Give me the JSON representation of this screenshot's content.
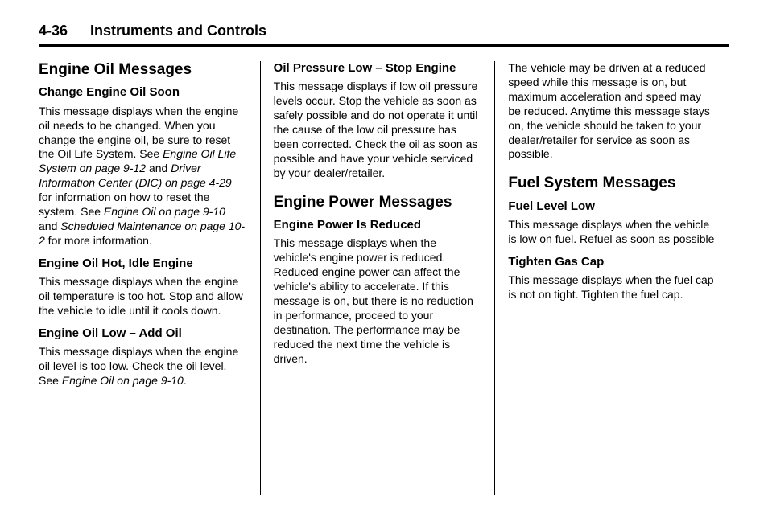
{
  "header": {
    "page_num": "4-36",
    "title": "Instruments and Controls"
  },
  "col1": {
    "h1_1": "Engine Oil Messages",
    "h2_1": "Change Engine Oil Soon",
    "p1a": "This message displays when the engine oil needs to be changed. When you change the engine oil, be sure to reset the Oil Life System. See ",
    "p1i1": "Engine Oil Life System on page 9-12",
    "p1b": " and ",
    "p1i2": "Driver Information Center (DIC) on page 4-29",
    "p1c": " for information on how to reset the system. See ",
    "p1i3": "Engine Oil on page 9-10",
    "p1d": " and ",
    "p1i4": "Scheduled Maintenance on page 10-2",
    "p1e": " for more information.",
    "h2_2": "Engine Oil Hot, Idle Engine",
    "p2": "This message displays when the engine oil temperature is too hot. Stop and allow the vehicle to idle until it cools down.",
    "h2_3": "Engine Oil Low – Add Oil",
    "p3a": "This message displays when the engine oil level is too low. Check the oil level. See ",
    "p3i1": "Engine Oil on page 9-10",
    "p3b": "."
  },
  "col2": {
    "h2_1": "Oil Pressure Low – Stop Engine",
    "p1": "This message displays if low oil pressure levels occur. Stop the vehicle as soon as safely possible and do not operate it until the cause of the low oil pressure has been corrected. Check the oil as soon as possible and have your vehicle serviced by your dealer/retailer.",
    "h1_1": "Engine Power Messages",
    "h2_2": "Engine Power Is Reduced",
    "p2": "This message displays when the vehicle's engine power is reduced. Reduced engine power can affect the vehicle's ability to accelerate. If this message is on, but there is no reduction in performance, proceed to your destination. The performance may be reduced the next time the vehicle is driven."
  },
  "col3": {
    "p1": "The vehicle may be driven at a reduced speed while this message is on, but maximum acceleration and speed may be reduced. Anytime this message stays on, the vehicle should be taken to your dealer/retailer for service as soon as possible.",
    "h1_1": "Fuel System Messages",
    "h2_1": "Fuel Level Low",
    "p2": "This message displays when the vehicle is low on fuel. Refuel as soon as possible",
    "h2_2": "Tighten Gas Cap",
    "p3": "This message displays when the fuel cap is not on tight. Tighten the fuel cap."
  }
}
